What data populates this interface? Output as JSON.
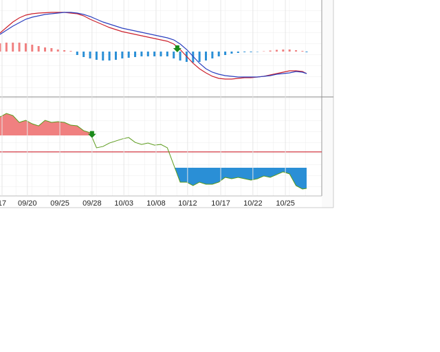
{
  "chart_data": [
    {
      "type": "macd",
      "x": [
        0,
        2,
        4,
        6,
        8,
        10,
        12,
        14,
        16,
        18,
        20,
        22,
        24,
        26,
        28,
        30,
        32,
        34,
        36,
        38,
        40,
        42,
        44,
        46,
        48,
        50,
        52,
        54,
        56,
        58,
        60,
        62,
        64,
        66,
        68,
        70,
        72,
        74,
        76,
        78,
        80,
        82,
        84,
        86,
        88,
        90,
        92,
        94,
        95.3
      ],
      "xlim": [
        0,
        100
      ],
      "ylim": [
        -1.3,
        1.5
      ],
      "series": [
        {
          "kind": "line",
          "color": "#cc1f2a",
          "values": [
            0.54,
            0.7,
            0.86,
            0.98,
            1.06,
            1.1,
            1.12,
            1.13,
            1.14,
            1.14,
            1.14,
            1.12,
            1.1,
            1.04,
            0.94,
            0.86,
            0.78,
            0.7,
            0.64,
            0.58,
            0.54,
            0.5,
            0.46,
            0.42,
            0.38,
            0.34,
            0.3,
            0.22,
            0.06,
            -0.14,
            -0.34,
            -0.5,
            -0.62,
            -0.72,
            -0.78,
            -0.8,
            -0.8,
            -0.78,
            -0.76,
            -0.76,
            -0.74,
            -0.72,
            -0.68,
            -0.64,
            -0.6,
            -0.56,
            -0.56,
            -0.58,
            -0.64
          ]
        },
        {
          "kind": "line",
          "color": "#2a3fbf",
          "values": [
            0.5,
            0.62,
            0.74,
            0.84,
            0.94,
            1,
            1.04,
            1.08,
            1.1,
            1.12,
            1.14,
            1.14,
            1.12,
            1.08,
            1.02,
            0.94,
            0.86,
            0.8,
            0.74,
            0.68,
            0.64,
            0.6,
            0.56,
            0.52,
            0.48,
            0.44,
            0.4,
            0.34,
            0.22,
            0.06,
            -0.14,
            -0.34,
            -0.5,
            -0.6,
            -0.66,
            -0.7,
            -0.72,
            -0.74,
            -0.74,
            -0.74,
            -0.74,
            -0.72,
            -0.7,
            -0.66,
            -0.64,
            -0.62,
            -0.58,
            -0.6,
            -0.64
          ]
        },
        {
          "kind": "histogram",
          "color": "#f08080",
          "negative_color": "#2a8fd6",
          "values": [
            0.24,
            0.26,
            0.26,
            0.26,
            0.24,
            0.2,
            0.16,
            0.12,
            0.1,
            0.06,
            0.04,
            0.02,
            -0.1,
            -0.16,
            -0.2,
            -0.24,
            -0.26,
            -0.26,
            -0.24,
            -0.2,
            -0.18,
            -0.16,
            -0.14,
            -0.14,
            -0.14,
            -0.14,
            -0.14,
            -0.2,
            -0.26,
            -0.3,
            -0.32,
            -0.3,
            -0.26,
            -0.2,
            -0.14,
            -0.1,
            -0.06,
            -0.04,
            -0.02,
            -0.02,
            -0.01,
            0.01,
            0.03,
            0.05,
            0.06,
            0.06,
            0.04,
            0.02,
            -0.02
          ]
        }
      ],
      "signals": [
        55.1
      ],
      "signal_color": "#1a8a1a"
    },
    {
      "type": "price",
      "x": [
        0,
        2,
        4,
        6,
        8,
        10,
        12,
        14,
        16,
        18,
        20,
        22,
        24,
        26,
        28,
        30,
        32,
        34,
        36,
        38,
        40,
        42,
        44,
        46,
        48,
        50,
        52,
        54,
        56,
        58,
        60,
        62,
        64,
        66,
        68,
        70,
        72,
        74,
        76,
        78,
        80,
        82,
        84,
        86,
        88,
        90,
        92,
        94,
        95.3
      ],
      "xlim": [
        0,
        100
      ],
      "ylim": [
        0,
        100
      ],
      "xticks": [
        {
          "value": 0.64,
          "label": "17"
        },
        {
          "value": 8.5,
          "label": "09/20"
        },
        {
          "value": 18.6,
          "label": "09/25"
        },
        {
          "value": 28.6,
          "label": "09/28"
        },
        {
          "value": 38.5,
          "label": "10/03"
        },
        {
          "value": 48.5,
          "label": "10/08"
        },
        {
          "value": 58.3,
          "label": "10/12"
        },
        {
          "value": 68.6,
          "label": "10/17"
        },
        {
          "value": 78.6,
          "label": "10/22"
        },
        {
          "value": 88.7,
          "label": "10/25"
        }
      ],
      "values": [
        80.4,
        83.9,
        81.8,
        74.8,
        76.9,
        73.4,
        71.3,
        76.9,
        74.8,
        75.5,
        74.8,
        72,
        71.3,
        66.4,
        64.3,
        49,
        50.3,
        53.8,
        55.9,
        58,
        59.4,
        54.5,
        52.4,
        53.8,
        51.7,
        52.4,
        49,
        31.5,
        14,
        14,
        10.5,
        14,
        11.9,
        11.9,
        14,
        18.9,
        17.5,
        18.9,
        17.5,
        16.1,
        17.5,
        20.3,
        18.9,
        21.7,
        24.5,
        22.4,
        10.5,
        7,
        7.7
      ],
      "color": "#5a9a1a",
      "reference_level": 44.8,
      "reference_color": "#cc1f2a",
      "upper_level": 61.5,
      "upper_color": "#f08080",
      "lower_level": 28.7,
      "lower_color": "#2a8fd6",
      "signals": [
        28.6
      ],
      "signal_color": "#1a8a1a"
    }
  ]
}
